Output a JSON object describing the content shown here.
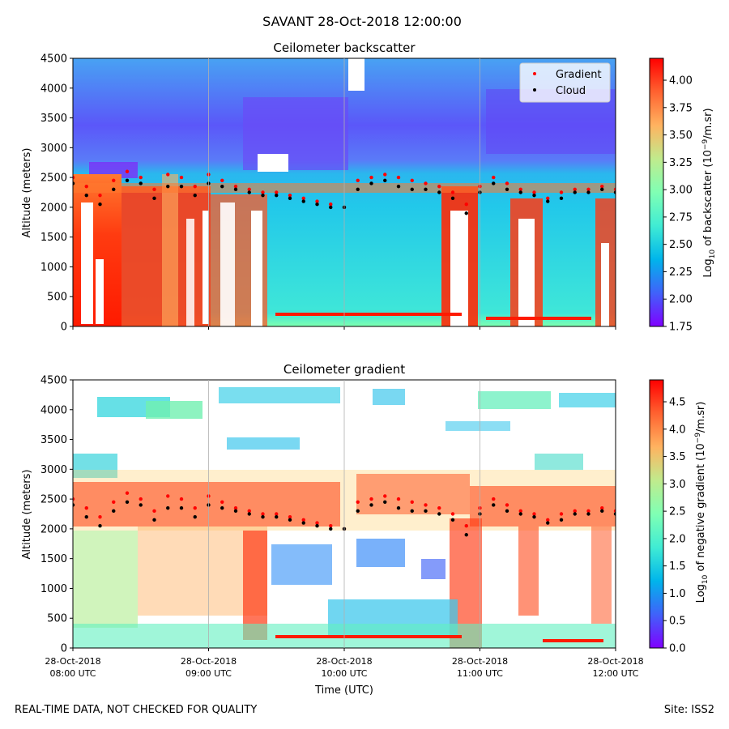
{
  "figure": {
    "suptitle": "SAVANT 28-Oct-2018 12:00:00",
    "footer_left": "REAL-TIME DATA, NOT CHECKED FOR QUALITY",
    "footer_right": "Site: ISS2"
  },
  "colors": {
    "gradient_marker": "#ff0000",
    "cloud_marker": "#000000",
    "colormap": "rainbow"
  },
  "chart_data": [
    {
      "type": "heatmap",
      "title": "Ceilometer backscatter",
      "ylabel": "Altitude (meters)",
      "ylim": [
        0,
        4500
      ],
      "yticks": [
        0,
        500,
        1000,
        1500,
        2000,
        2500,
        3000,
        3500,
        4000,
        4500
      ],
      "x_tick_labels": [],
      "colorbar": {
        "label": "Log10 of backscatter (10^-9/m.sr)",
        "range": [
          1.75,
          4.2
        ],
        "ticks": [
          "1.75",
          "2.00",
          "2.25",
          "2.50",
          "2.75",
          "3.00",
          "3.25",
          "3.50",
          "3.75",
          "4.00"
        ]
      },
      "legend": {
        "position": "top-right",
        "entries": [
          "Gradient",
          "Cloud"
        ]
      },
      "series": [
        {
          "name": "Gradient",
          "x": [
            8.0,
            8.1,
            8.2,
            8.3,
            8.4,
            8.5,
            8.6,
            8.7,
            8.8,
            8.9,
            9.0,
            9.1,
            9.2,
            9.3,
            9.4,
            9.5,
            9.6,
            9.7,
            9.8,
            9.9,
            10.0,
            10.1,
            10.2,
            10.3,
            10.4,
            10.5,
            10.6,
            10.7,
            10.8,
            10.9,
            11.0,
            11.1,
            11.2,
            11.3,
            11.4,
            11.5,
            11.6,
            11.7,
            11.8,
            11.9,
            12.0
          ],
          "y": [
            2500,
            2350,
            2200,
            2450,
            2600,
            2500,
            2300,
            2550,
            2500,
            2350,
            2550,
            2450,
            2350,
            2300,
            2250,
            2250,
            2200,
            2150,
            2100,
            2050,
            2000,
            2450,
            2500,
            2550,
            2500,
            2450,
            2400,
            2350,
            2250,
            2050,
            2350,
            2500,
            2400,
            2300,
            2250,
            2150,
            2250,
            2300,
            2300,
            2350,
            2300
          ]
        },
        {
          "name": "Cloud",
          "x": [
            8.0,
            8.1,
            8.2,
            8.3,
            8.4,
            8.5,
            8.6,
            8.7,
            8.8,
            8.9,
            9.0,
            9.1,
            9.2,
            9.3,
            9.4,
            9.5,
            9.6,
            9.7,
            9.8,
            9.9,
            10.0,
            10.1,
            10.2,
            10.3,
            10.4,
            10.5,
            10.6,
            10.7,
            10.8,
            10.9,
            11.0,
            11.1,
            11.2,
            11.3,
            11.4,
            11.5,
            11.6,
            11.7,
            11.8,
            11.9,
            12.0
          ],
          "y": [
            2400,
            2200,
            2050,
            2300,
            2450,
            2400,
            2150,
            2350,
            2350,
            2200,
            2400,
            2350,
            2300,
            2250,
            2200,
            2200,
            2150,
            2100,
            2050,
            2000,
            2000,
            2300,
            2400,
            2450,
            2350,
            2300,
            2300,
            2250,
            2150,
            1900,
            2250,
            2400,
            2300,
            2250,
            2200,
            2100,
            2150,
            2250,
            2250,
            2300,
            2250
          ]
        }
      ]
    },
    {
      "type": "heatmap",
      "title": "Ceilometer gradient",
      "xlabel": "Time (UTC)",
      "ylabel": "Altitude (meters)",
      "ylim": [
        0,
        4500
      ],
      "yticks": [
        0,
        500,
        1000,
        1500,
        2000,
        2500,
        3000,
        3500,
        4000,
        4500
      ],
      "x_tick_labels": [
        [
          "28-Oct-2018",
          "08:00 UTC"
        ],
        [
          "28-Oct-2018",
          "09:00 UTC"
        ],
        [
          "28-Oct-2018",
          "10:00 UTC"
        ],
        [
          "28-Oct-2018",
          "11:00 UTC"
        ],
        [
          "28-Oct-2018",
          "12:00 UTC"
        ]
      ],
      "colorbar": {
        "label": "Log10 of negative gradient (10^-9/m.sr)",
        "range": [
          0.0,
          4.9
        ],
        "ticks": [
          "0.0",
          "0.5",
          "1.0",
          "1.5",
          "2.0",
          "2.5",
          "3.0",
          "3.5",
          "4.0",
          "4.5"
        ]
      },
      "series": [
        {
          "name": "Gradient",
          "x": [
            8.0,
            8.1,
            8.2,
            8.3,
            8.4,
            8.5,
            8.6,
            8.7,
            8.8,
            8.9,
            9.0,
            9.1,
            9.2,
            9.3,
            9.4,
            9.5,
            9.6,
            9.7,
            9.8,
            9.9,
            10.0,
            10.1,
            10.2,
            10.3,
            10.4,
            10.5,
            10.6,
            10.7,
            10.8,
            10.9,
            11.0,
            11.1,
            11.2,
            11.3,
            11.4,
            11.5,
            11.6,
            11.7,
            11.8,
            11.9,
            12.0
          ],
          "y": [
            2500,
            2350,
            2200,
            2450,
            2600,
            2500,
            2300,
            2550,
            2500,
            2350,
            2550,
            2450,
            2350,
            2300,
            2250,
            2250,
            2200,
            2150,
            2100,
            2050,
            2000,
            2450,
            2500,
            2550,
            2500,
            2450,
            2400,
            2350,
            2250,
            2050,
            2350,
            2500,
            2400,
            2300,
            2250,
            2150,
            2250,
            2300,
            2300,
            2350,
            2300
          ]
        },
        {
          "name": "Cloud",
          "x": [
            8.0,
            8.1,
            8.2,
            8.3,
            8.4,
            8.5,
            8.6,
            8.7,
            8.8,
            8.9,
            9.0,
            9.1,
            9.2,
            9.3,
            9.4,
            9.5,
            9.6,
            9.7,
            9.8,
            9.9,
            10.0,
            10.1,
            10.2,
            10.3,
            10.4,
            10.5,
            10.6,
            10.7,
            10.8,
            10.9,
            11.0,
            11.1,
            11.2,
            11.3,
            11.4,
            11.5,
            11.6,
            11.7,
            11.8,
            11.9,
            12.0
          ],
          "y": [
            2400,
            2200,
            2050,
            2300,
            2450,
            2400,
            2150,
            2350,
            2350,
            2200,
            2400,
            2350,
            2300,
            2250,
            2200,
            2200,
            2150,
            2100,
            2050,
            2000,
            2000,
            2300,
            2400,
            2450,
            2350,
            2300,
            2300,
            2250,
            2150,
            1900,
            2250,
            2400,
            2300,
            2250,
            2200,
            2100,
            2150,
            2250,
            2250,
            2300,
            2250
          ]
        }
      ]
    }
  ]
}
